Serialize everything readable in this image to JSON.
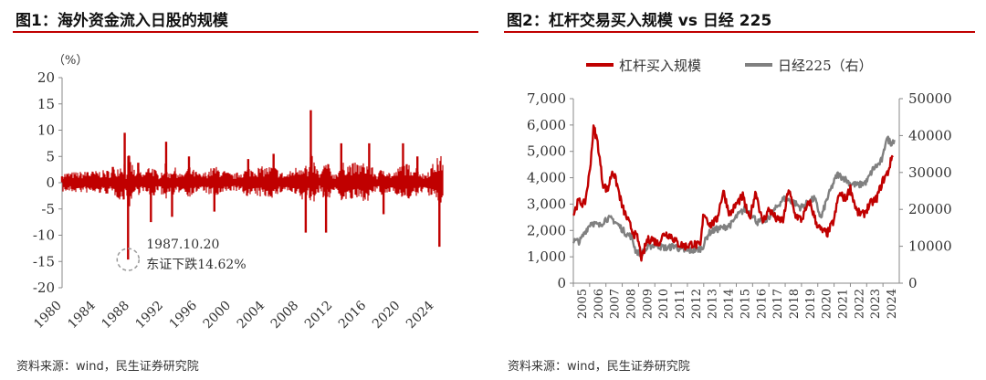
{
  "panels": [
    {
      "title": "图1：海外资金流入日股的规模",
      "source": "资料来源：wind，民生证券研究院"
    },
    {
      "title": "图2：杠杆交易买入规模 vs 日经 225",
      "source": "资料来源：wind，民生证券研究院"
    }
  ],
  "colors": {
    "accent": "#c00000",
    "series_red": "#c00000",
    "series_gray": "#808080"
  },
  "chart_data": [
    {
      "type": "bar",
      "unit_label": "（%）",
      "ylim": [
        -20,
        20
      ],
      "yticks": [
        "20",
        "15",
        "10",
        "5",
        "0",
        "-5",
        "-10",
        "-15",
        "-20"
      ],
      "xlim": [
        1980,
        2025
      ],
      "xticks": [
        "1980",
        "1984",
        "1988",
        "1992",
        "1996",
        "2000",
        "2004",
        "2008",
        "2012",
        "2016",
        "2020",
        "2024"
      ],
      "annotation": {
        "lines": [
          "1987.10.20",
          "东证下跌14.62%"
        ],
        "x": 1987.8,
        "y": -14.62
      },
      "series": [
        {
          "values": [
            [
              1980,
              1.2
            ],
            [
              1983,
              2.0
            ],
            [
              1986,
              3.0
            ],
            [
              1987.4,
              9.5
            ],
            [
              1987.8,
              -14.62
            ],
            [
              1989,
              3.8
            ],
            [
              1990.5,
              -7.5
            ],
            [
              1992.3,
              7.8
            ],
            [
              1993,
              -6.5
            ],
            [
              1995,
              5.0
            ],
            [
              1998,
              -5.5
            ],
            [
              2002,
              4.5
            ],
            [
              2005,
              5.5
            ],
            [
              2008.8,
              -9.5
            ],
            [
              2009.4,
              13.8
            ],
            [
              2011.2,
              -9.5
            ],
            [
              2013,
              7.5
            ],
            [
              2016.3,
              7.5
            ],
            [
              2018,
              -6.0
            ],
            [
              2020.3,
              7.5
            ],
            [
              2022,
              5.0
            ],
            [
              2024.6,
              -12.2
            ]
          ]
        }
      ]
    },
    {
      "type": "line",
      "legend": [
        "杠杆买入规模",
        "日经225（右）"
      ],
      "legend_position": "top",
      "ylim_left": [
        0,
        7000
      ],
      "yticks_left": [
        "7,000",
        "6,000",
        "5,000",
        "4,000",
        "3,000",
        "2,000",
        "1,000",
        "0"
      ],
      "ylim_right": [
        0,
        50000
      ],
      "yticks_right": [
        "50000",
        "40000",
        "30000",
        "20000",
        "10000",
        "0"
      ],
      "xlim": [
        2005,
        2025
      ],
      "xticks": [
        "2005",
        "2006",
        "2007",
        "2008",
        "2009",
        "2010",
        "2011",
        "2012",
        "2013",
        "2014",
        "2015",
        "2016",
        "2017",
        "2018",
        "2019",
        "2020",
        "2021",
        "2022",
        "2023",
        "2024"
      ],
      "series": [
        {
          "name": "杠杆买入规模",
          "axis": "left",
          "x": [
            2005.0,
            2005.3,
            2005.7,
            2006.0,
            2006.25,
            2006.5,
            2006.8,
            2007.1,
            2007.4,
            2007.7,
            2008.0,
            2008.4,
            2008.7,
            2008.95,
            2009.2,
            2009.5,
            2009.8,
            2010.2,
            2010.6,
            2011.0,
            2011.4,
            2011.9,
            2012.3,
            2012.8,
            2013.0,
            2013.4,
            2013.8,
            2014.2,
            2014.6,
            2015.0,
            2015.4,
            2015.8,
            2016.2,
            2016.6,
            2017.0,
            2017.5,
            2017.9,
            2018.2,
            2018.6,
            2019.0,
            2019.5,
            2019.9,
            2020.2,
            2020.6,
            2021.0,
            2021.3,
            2021.7,
            2022.0,
            2022.4,
            2022.8,
            2023.2,
            2023.6,
            2024.0,
            2024.3,
            2024.6
          ],
          "y": [
            2600,
            3100,
            3000,
            4200,
            5950,
            5300,
            3800,
            3500,
            4300,
            3700,
            2900,
            2300,
            1900,
            1700,
            900,
            1600,
            1700,
            1500,
            1900,
            1800,
            1500,
            1400,
            1500,
            1400,
            2700,
            2200,
            2400,
            3500,
            2600,
            3000,
            3300,
            2400,
            3500,
            2300,
            2800,
            2400,
            2400,
            3600,
            2600,
            2400,
            3100,
            2300,
            2000,
            1900,
            2400,
            3400,
            3200,
            3600,
            2700,
            2600,
            3000,
            3200,
            3900,
            4200,
            4900
          ]
        },
        {
          "name": "日经225（右）",
          "axis": "right",
          "x": [
            2005.0,
            2005.4,
            2005.8,
            2006.1,
            2006.6,
            2007.0,
            2007.4,
            2007.8,
            2008.2,
            2008.6,
            2008.8,
            2009.0,
            2009.3,
            2009.7,
            2010.0,
            2010.4,
            2010.8,
            2011.2,
            2011.6,
            2012.0,
            2012.5,
            2012.9,
            2013.3,
            2013.7,
            2014.2,
            2014.7,
            2015.0,
            2015.5,
            2015.9,
            2016.3,
            2016.8,
            2017.3,
            2017.8,
            2018.0,
            2018.5,
            2018.95,
            2019.3,
            2019.8,
            2020.2,
            2020.5,
            2020.9,
            2021.2,
            2021.6,
            2022.0,
            2022.5,
            2023.0,
            2023.4,
            2023.8,
            2024.0,
            2024.2,
            2024.5,
            2024.7
          ],
          "y": [
            11500,
            11300,
            14500,
            16500,
            15500,
            17500,
            17300,
            15600,
            13600,
            12500,
            9000,
            8200,
            8500,
            10000,
            10500,
            9800,
            9500,
            10200,
            9000,
            8700,
            9000,
            9500,
            13500,
            14500,
            15000,
            16000,
            18000,
            20000,
            19000,
            16500,
            17000,
            19500,
            22500,
            23000,
            22000,
            20500,
            21500,
            23000,
            17500,
            22000,
            26500,
            29500,
            28500,
            27000,
            26500,
            27500,
            31000,
            32500,
            34000,
            39500,
            38000,
            39000
          ]
        }
      ]
    }
  ]
}
